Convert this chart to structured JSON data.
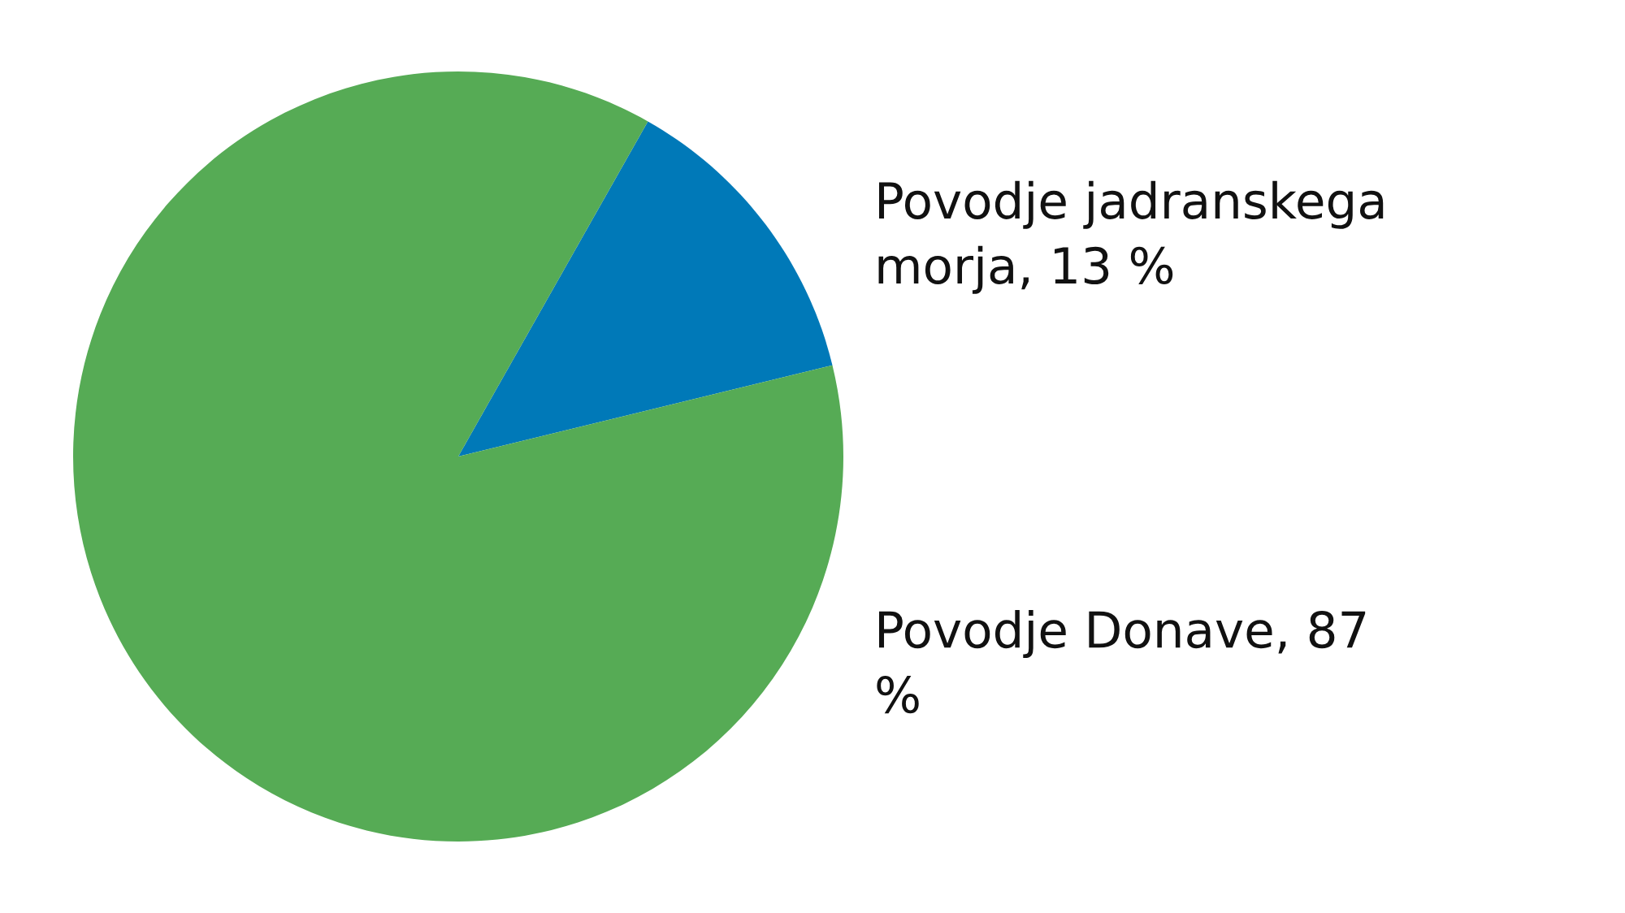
{
  "chart_data": {
    "type": "pie",
    "categories": [
      "Povodje jadranskega morja",
      "Povodje Donave"
    ],
    "values": [
      13,
      87
    ],
    "value_labels": [
      "13 %",
      "87 %"
    ],
    "colors": [
      "#0079b8",
      "#56ab55"
    ],
    "legend": false
  }
}
